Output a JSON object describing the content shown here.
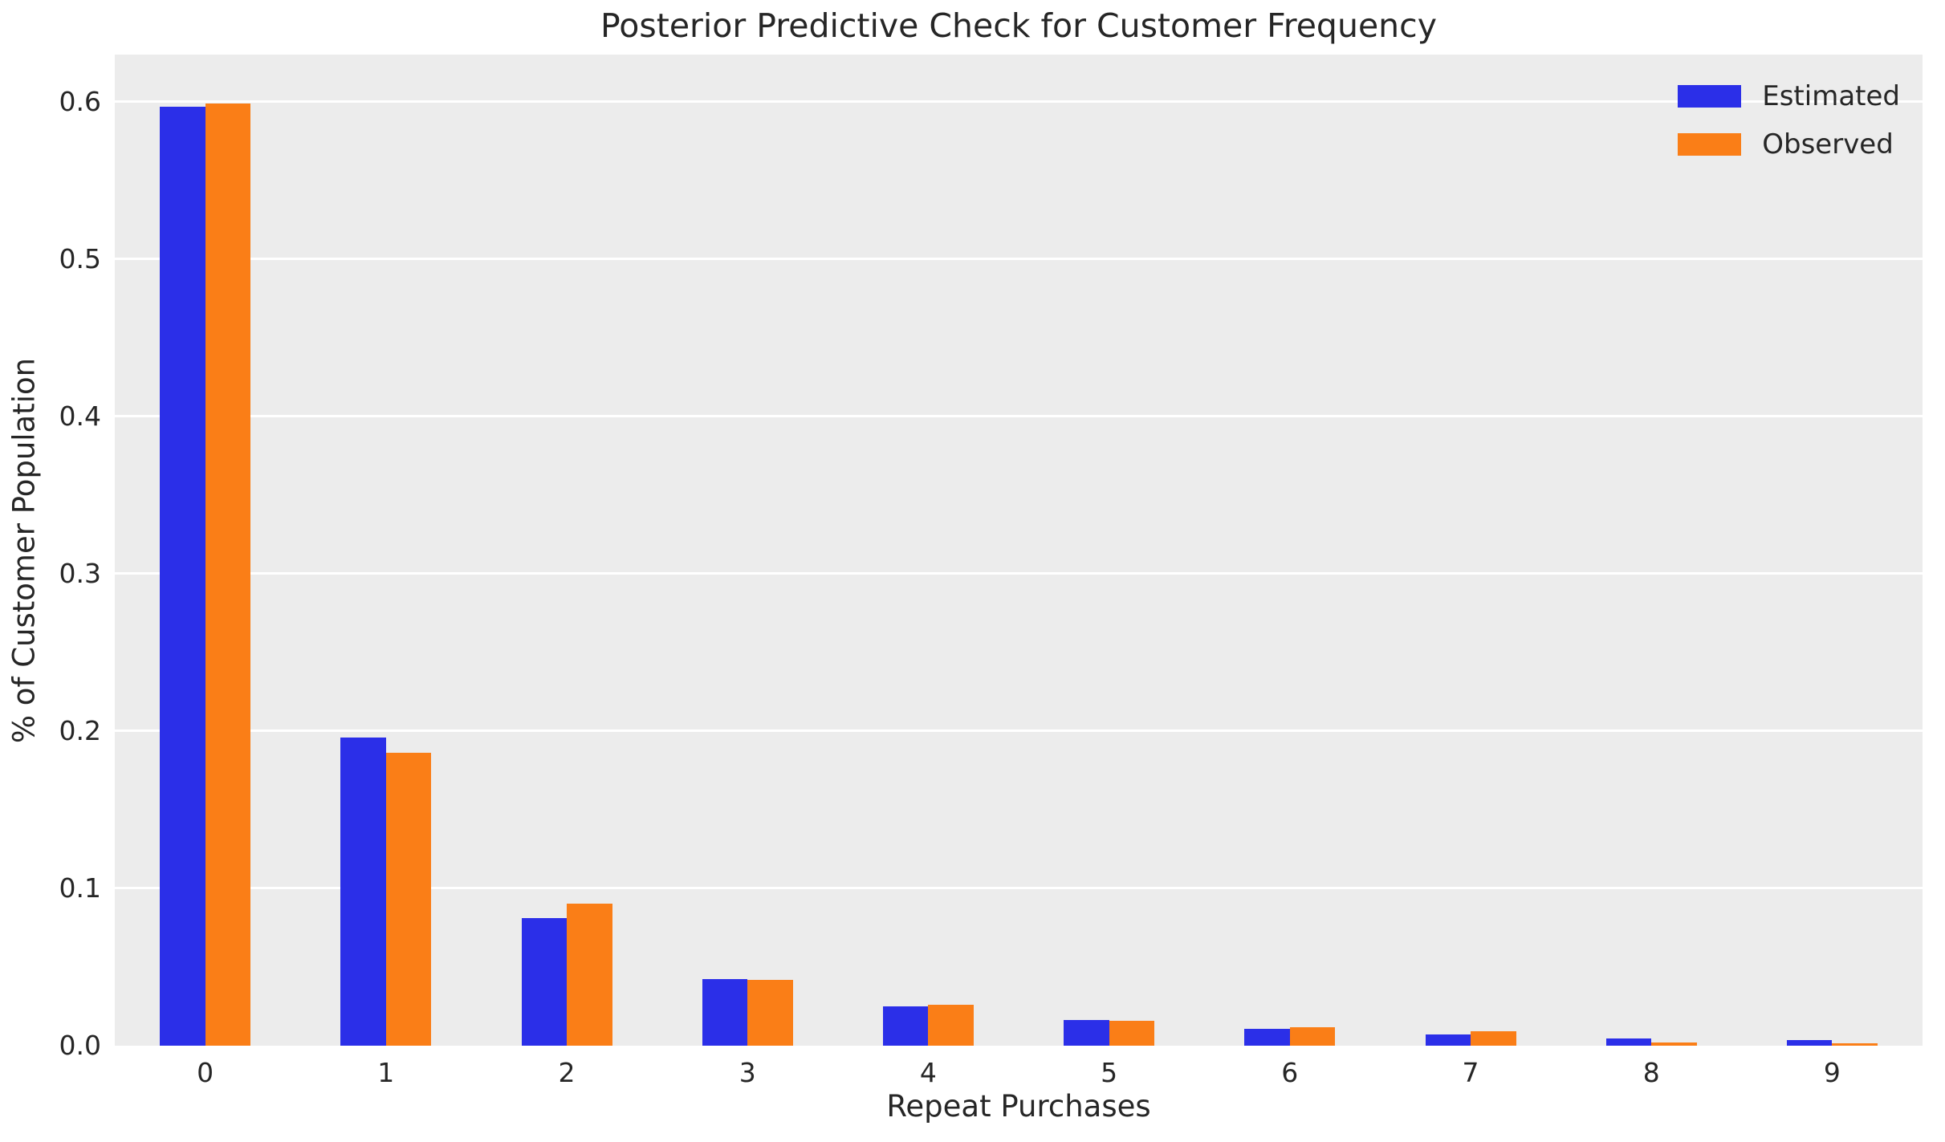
{
  "chart_data": {
    "type": "bar",
    "title": "Posterior Predictive Check for Customer Frequency",
    "xlabel": "Repeat Purchases",
    "ylabel": "% of Customer Population",
    "categories": [
      "0",
      "1",
      "2",
      "3",
      "4",
      "5",
      "6",
      "7",
      "8",
      "9"
    ],
    "series": [
      {
        "name": "Estimated",
        "color": "#2B2FE8",
        "values": [
          0.597,
          0.196,
          0.081,
          0.0425,
          0.0248,
          0.0161,
          0.0105,
          0.0073,
          0.0047,
          0.0037
        ]
      },
      {
        "name": "Observed",
        "color": "#FA7E17",
        "values": [
          0.599,
          0.186,
          0.0904,
          0.0419,
          0.0258,
          0.0156,
          0.0119,
          0.0093,
          0.0023,
          0.0015
        ]
      }
    ],
    "ylim": [
      0,
      0.63
    ],
    "yticks": [
      0.0,
      0.1,
      0.2,
      0.3,
      0.4,
      0.5,
      0.6
    ],
    "ytick_labels": [
      "0.0",
      "0.1",
      "0.2",
      "0.3",
      "0.4",
      "0.5",
      "0.6"
    ],
    "grid": true,
    "legend_position": "upper right",
    "colors": {
      "plot_background": "#ECECEC",
      "figure_background": "#FFFFFF",
      "gridline": "#FFFFFF",
      "text": "#262626"
    }
  }
}
